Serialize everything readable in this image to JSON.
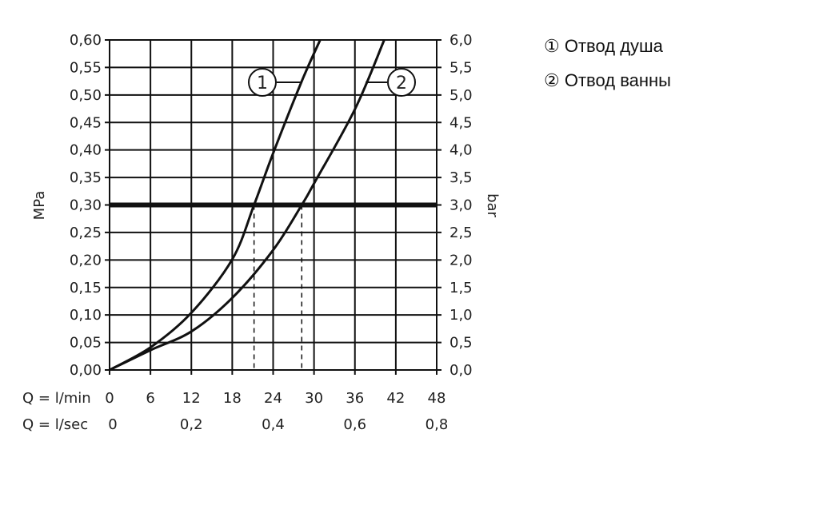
{
  "chart_data": {
    "type": "line",
    "xlabel_rows": [
      "Q = l/min",
      "Q = l/sec"
    ],
    "x_ticks_lmin": [
      "0",
      "6",
      "12",
      "18",
      "24",
      "30",
      "36",
      "42",
      "48"
    ],
    "x_ticks_lsec": [
      "0",
      "0,2",
      "0,4",
      "0,6",
      "0,8"
    ],
    "xlim": [
      0,
      48
    ],
    "ylabel_left": "MPa",
    "ylabel_right": "bar",
    "ylim": [
      0,
      0.6
    ],
    "y_ticks_left": [
      "0,00",
      "0,05",
      "0,10",
      "0,15",
      "0,20",
      "0,25",
      "0,30",
      "0,35",
      "0,40",
      "0,45",
      "0,50",
      "0,55",
      "0,60"
    ],
    "y_ticks_right": [
      "0,0",
      "0,5",
      "1,0",
      "1,5",
      "2,0",
      "2,5",
      "3,0",
      "3,5",
      "4,0",
      "4,5",
      "5,0",
      "5,5",
      "6,0"
    ],
    "grid": true,
    "reference_line_mpa": 0.3,
    "series": [
      {
        "name": "Отвод душа",
        "marker": "1",
        "x": [
          0,
          6,
          12,
          18,
          21.2,
          24,
          28.2,
          30.9
        ],
        "y": [
          0,
          0.041,
          0.104,
          0.201,
          0.3,
          0.394,
          0.525,
          0.6
        ],
        "drop_x": 21.2
      },
      {
        "name": "Отвод ванны",
        "marker": "2",
        "x": [
          0,
          6,
          12,
          18,
          24,
          28.2,
          30,
          36,
          40.3
        ],
        "y": [
          0,
          0.036,
          0.07,
          0.131,
          0.218,
          0.3,
          0.339,
          0.474,
          0.6
        ],
        "drop_x": 28.2
      }
    ],
    "legend_position": "right"
  },
  "legend": [
    {
      "symbol": "①",
      "label": "Отвод душа"
    },
    {
      "symbol": "②",
      "label": "Отвод ванны"
    }
  ]
}
